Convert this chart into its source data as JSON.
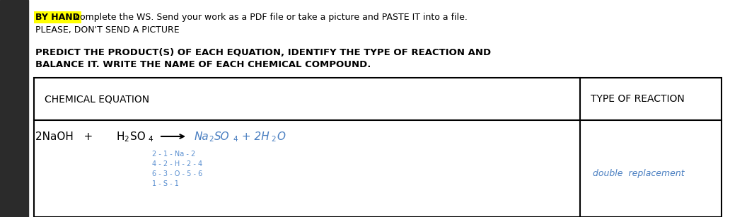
{
  "bg_color": "#ffffff",
  "left_bar_color": "#2b2b2b",
  "highlight_color": "#ffff00",
  "text_color": "#000000",
  "hand_color": "#4a7fc1",
  "bal_color": "#5a8fd0",
  "line1_highlight": "BY HAND",
  "line1_rest": " complete the WS. Send your work as a PDF file or take a picture and PASTE IT into a file.",
  "line2": "PLEASE, DON'T SEND A PICTURE",
  "bold1": "PREDICT THE PRODUCT(S) OF EACH EQUATION, IDENTIFY THE TYPE OF REACTION AND",
  "bold2": "BALANCE IT. WRITE THE NAME OF EACH CHEMICAL COMPOUND.",
  "col1_header": "CHEMICAL EQUATION",
  "col2_header": "TYPE OF REACTION",
  "reaction_type": "double  replacement",
  "bal_line1": "2 - 1 - Na - 2",
  "bal_line2": "4 - 2 - H - 2 - 4",
  "bal_line3": "6 - 3 - O - 5 - 6",
  "bal_line4": "1 - S - 1"
}
